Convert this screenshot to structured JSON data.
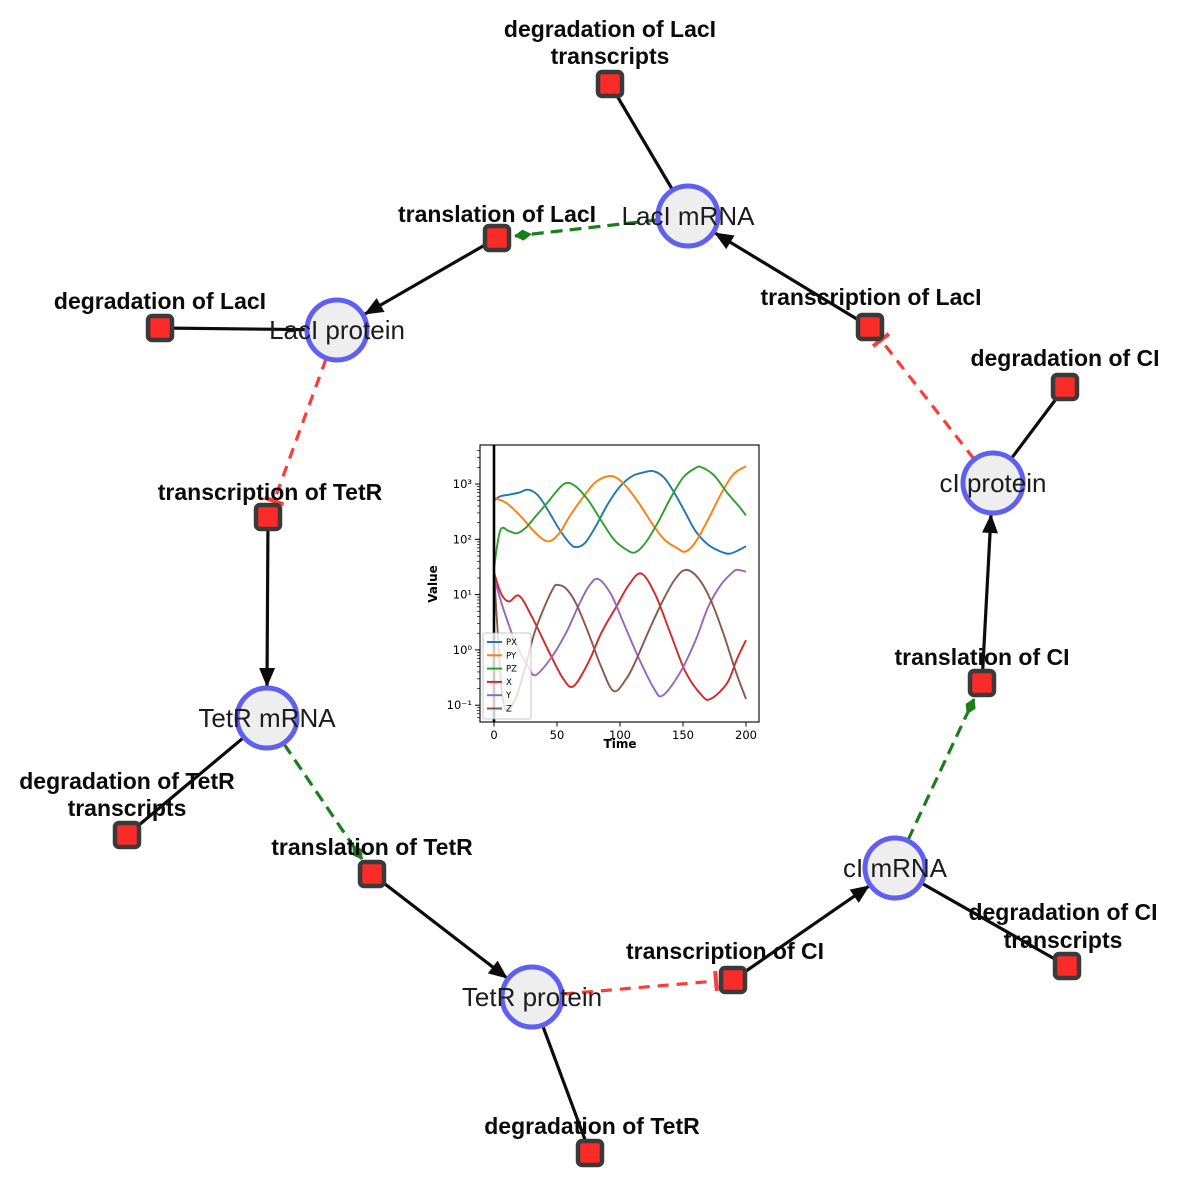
{
  "diagram": {
    "title": "repressilator reaction network",
    "colors": {
      "species_fill": "#eeeeee",
      "species_stroke": "#5f5ff2",
      "reaction_fill": "#fb2b28",
      "reaction_stroke": "#3a3a3a",
      "edge_black": "#0c0c0c",
      "modifier_green": "#1b7e1b",
      "inhibition_red": "#fb3d3a"
    },
    "species": [
      {
        "id": "laci-mrna",
        "label": "LacI mRNA"
      },
      {
        "id": "laci-protein",
        "label": "LacI protein"
      },
      {
        "id": "tetr-mrna",
        "label": "TetR mRNA"
      },
      {
        "id": "tetr-protein",
        "label": "TetR protein"
      },
      {
        "id": "ci-mrna",
        "label": "cI mRNA"
      },
      {
        "id": "ci-protein",
        "label": "cI protein"
      }
    ],
    "reactions": [
      {
        "id": "degradation-laci-transcripts",
        "lines": [
          "degradation of LacI",
          "transcripts"
        ]
      },
      {
        "id": "translation-laci",
        "lines": [
          "translation of LacI"
        ]
      },
      {
        "id": "degradation-laci",
        "lines": [
          "degradation of LacI"
        ]
      },
      {
        "id": "transcription-laci",
        "lines": [
          "transcription of LacI"
        ]
      },
      {
        "id": "degradation-ci",
        "lines": [
          "degradation of CI"
        ]
      },
      {
        "id": "transcription-tetr",
        "lines": [
          "transcription of TetR"
        ]
      },
      {
        "id": "degradation-tetr-transcripts",
        "lines": [
          "degradation of TetR",
          "transcripts"
        ]
      },
      {
        "id": "translation-tetr",
        "lines": [
          "translation of TetR"
        ]
      },
      {
        "id": "translation-ci",
        "lines": [
          "translation of CI"
        ]
      },
      {
        "id": "transcription-ci",
        "lines": [
          "transcription of CI"
        ]
      },
      {
        "id": "degradation-tetr",
        "lines": [
          "degradation of TetR"
        ]
      },
      {
        "id": "degradation-ci-transcripts",
        "lines": [
          "degradation of CI",
          "transcripts"
        ]
      }
    ]
  },
  "chart_data": {
    "type": "line",
    "title": "",
    "xlabel": "Time",
    "ylabel": "Value",
    "x_ticks": [
      0,
      50,
      100,
      150,
      200
    ],
    "y_tick_exponents": [
      -1,
      0,
      1,
      2,
      3
    ],
    "y_tick_labels": [
      "10⁻¹",
      "10⁰",
      "10¹",
      "10²",
      "10³"
    ],
    "xlim": [
      -11,
      210
    ],
    "ylog_scale": true,
    "axvline_x": 0,
    "legend_position": "lower left",
    "series": [
      {
        "name": "PX",
        "color": "#1f77b4",
        "points": [
          [
            0,
            500
          ],
          [
            5,
            600
          ],
          [
            12,
            640
          ],
          [
            20,
            700
          ],
          [
            27,
            790
          ],
          [
            35,
            620
          ],
          [
            43,
            330
          ],
          [
            52,
            150
          ],
          [
            60,
            85
          ],
          [
            65,
            72
          ],
          [
            72,
            85
          ],
          [
            80,
            160
          ],
          [
            90,
            420
          ],
          [
            100,
            900
          ],
          [
            110,
            1400
          ],
          [
            120,
            1650
          ],
          [
            127,
            1700
          ],
          [
            135,
            1300
          ],
          [
            143,
            700
          ],
          [
            152,
            300
          ],
          [
            160,
            140
          ],
          [
            170,
            80
          ],
          [
            180,
            60
          ],
          [
            187,
            55
          ],
          [
            195,
            65
          ],
          [
            200,
            75
          ]
        ]
      },
      {
        "name": "PY",
        "color": "#ff7f0e",
        "points": [
          [
            0,
            560
          ],
          [
            10,
            450
          ],
          [
            22,
            250
          ],
          [
            33,
            130
          ],
          [
            43,
            92
          ],
          [
            52,
            130
          ],
          [
            60,
            260
          ],
          [
            70,
            550
          ],
          [
            80,
            1050
          ],
          [
            90,
            1380
          ],
          [
            97,
            1300
          ],
          [
            105,
            900
          ],
          [
            115,
            450
          ],
          [
            125,
            200
          ],
          [
            135,
            100
          ],
          [
            145,
            70
          ],
          [
            152,
            60
          ],
          [
            160,
            90
          ],
          [
            170,
            230
          ],
          [
            180,
            650
          ],
          [
            190,
            1500
          ],
          [
            200,
            2100
          ]
        ]
      },
      {
        "name": "PZ",
        "color": "#2ca02c",
        "points": [
          [
            0,
            30
          ],
          [
            5,
            145
          ],
          [
            12,
            140
          ],
          [
            18,
            128
          ],
          [
            25,
            160
          ],
          [
            33,
            260
          ],
          [
            43,
            480
          ],
          [
            52,
            850
          ],
          [
            58,
            1050
          ],
          [
            65,
            900
          ],
          [
            75,
            500
          ],
          [
            85,
            220
          ],
          [
            95,
            100
          ],
          [
            105,
            65
          ],
          [
            112,
            58
          ],
          [
            120,
            85
          ],
          [
            130,
            200
          ],
          [
            140,
            550
          ],
          [
            150,
            1300
          ],
          [
            160,
            1950
          ],
          [
            165,
            2000
          ],
          [
            175,
            1400
          ],
          [
            185,
            700
          ],
          [
            195,
            380
          ],
          [
            200,
            270
          ]
        ]
      },
      {
        "name": "X",
        "color": "#d62728",
        "points": [
          [
            0,
            25
          ],
          [
            6,
            10
          ],
          [
            12,
            7.5
          ],
          [
            20,
            9.5
          ],
          [
            30,
            4
          ],
          [
            45,
            0.8
          ],
          [
            55,
            0.3
          ],
          [
            63,
            0.22
          ],
          [
            75,
            0.6
          ],
          [
            85,
            2
          ],
          [
            97,
            6
          ],
          [
            107,
            15
          ],
          [
            117,
            24
          ],
          [
            128,
            10
          ],
          [
            140,
            2
          ],
          [
            152,
            0.4
          ],
          [
            165,
            0.15
          ],
          [
            172,
            0.13
          ],
          [
            185,
            0.25
          ],
          [
            193,
            0.7
          ],
          [
            200,
            1.5
          ]
        ]
      },
      {
        "name": "Y",
        "color": "#9467bd",
        "points": [
          [
            0,
            20
          ],
          [
            8,
            5
          ],
          [
            18,
            1.2
          ],
          [
            27,
            0.5
          ],
          [
            33,
            0.35
          ],
          [
            45,
            0.7
          ],
          [
            57,
            2
          ],
          [
            68,
            7
          ],
          [
            76,
            15
          ],
          [
            83,
            19
          ],
          [
            93,
            10
          ],
          [
            103,
            3
          ],
          [
            115,
            0.7
          ],
          [
            127,
            0.2
          ],
          [
            134,
            0.15
          ],
          [
            148,
            0.4
          ],
          [
            160,
            1.5
          ],
          [
            170,
            6
          ],
          [
            180,
            15
          ],
          [
            190,
            26
          ],
          [
            194,
            28
          ],
          [
            200,
            26
          ]
        ]
      },
      {
        "name": "Z",
        "color": "#8c564b",
        "points": [
          [
            0,
            25
          ],
          [
            3,
            2
          ],
          [
            6,
            0.2
          ],
          [
            9,
            0.085
          ],
          [
            13,
            0.09
          ],
          [
            18,
            0.15
          ],
          [
            25,
            0.5
          ],
          [
            32,
            2
          ],
          [
            40,
            6
          ],
          [
            47,
            13
          ],
          [
            50,
            15
          ],
          [
            57,
            13
          ],
          [
            65,
            7
          ],
          [
            75,
            2
          ],
          [
            85,
            0.5
          ],
          [
            95,
            0.18
          ],
          [
            105,
            0.3
          ],
          [
            112,
            0.6
          ],
          [
            122,
            2
          ],
          [
            133,
            7
          ],
          [
            143,
            18
          ],
          [
            152,
            28
          ],
          [
            162,
            20
          ],
          [
            172,
            8
          ],
          [
            182,
            2
          ],
          [
            192,
            0.4
          ],
          [
            200,
            0.13
          ]
        ]
      }
    ]
  }
}
